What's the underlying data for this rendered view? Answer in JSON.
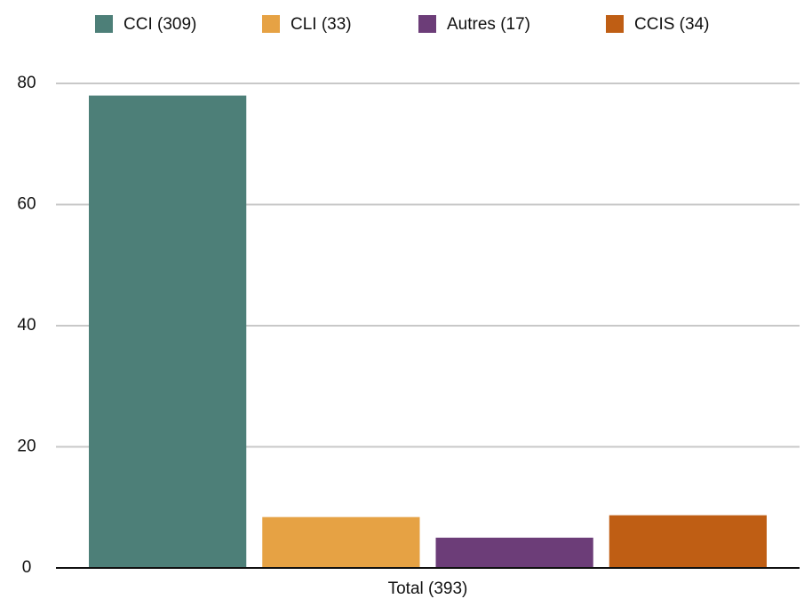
{
  "chart_data": {
    "type": "bar",
    "categories": [
      "Total (393)"
    ],
    "series": [
      {
        "name": "CCI (309)",
        "color": "#4d7f78",
        "values": [
          78
        ]
      },
      {
        "name": "CLI (33)",
        "color": "#e6a244",
        "values": [
          8.4
        ]
      },
      {
        "name": "Autres (17)",
        "color": "#6c3d78",
        "values": [
          5
        ]
      },
      {
        "name": "CCIS (34)",
        "color": "#bf5e14",
        "values": [
          8.7
        ]
      }
    ],
    "ylim": [
      0,
      80
    ],
    "yticks": [
      0,
      20,
      40,
      60,
      80
    ],
    "grid": true,
    "legend": "top"
  }
}
